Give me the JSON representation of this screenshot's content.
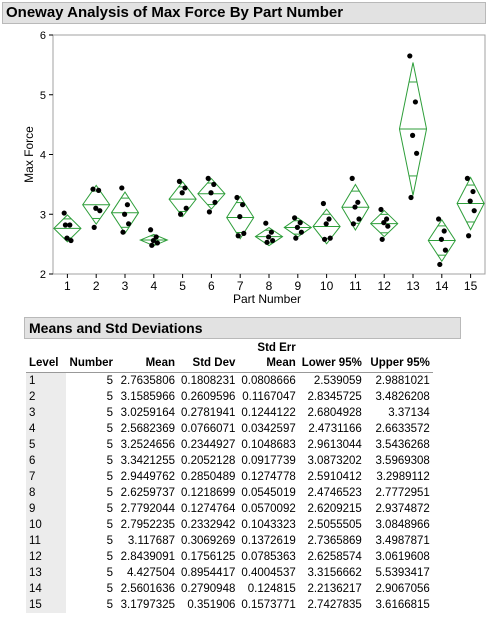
{
  "report": {
    "title": "Oneway Analysis of Max Force By Part Number"
  },
  "chart_data": {
    "type": "scatter",
    "title": "",
    "xlabel": "Part Number",
    "ylabel": "Max Force",
    "ylim": [
      2,
      6
    ],
    "yticks": [
      2,
      3,
      4,
      5,
      6
    ],
    "categories": [
      "1",
      "2",
      "3",
      "4",
      "5",
      "6",
      "7",
      "8",
      "9",
      "10",
      "11",
      "12",
      "13",
      "14",
      "15"
    ],
    "grid": false,
    "point_color": "#000000",
    "diamond_color": "#2e9e3a",
    "points": [
      [
        3.02,
        2.82,
        2.6,
        2.56,
        2.82
      ],
      [
        3.42,
        3.4,
        3.1,
        3.06,
        2.78
      ],
      [
        3.44,
        3.16,
        3.0,
        2.84,
        2.7
      ],
      [
        2.74,
        2.62,
        2.56,
        2.52,
        2.48
      ],
      [
        3.55,
        3.44,
        3.36,
        3.1,
        3.0
      ],
      [
        3.6,
        3.5,
        3.36,
        3.2,
        3.04
      ],
      [
        3.28,
        3.16,
        2.96,
        2.68,
        2.64
      ],
      [
        2.85,
        2.7,
        2.62,
        2.56,
        2.53
      ],
      [
        2.94,
        2.86,
        2.78,
        2.7,
        2.6
      ],
      [
        3.18,
        2.92,
        2.84,
        2.6,
        2.58
      ],
      [
        3.6,
        3.2,
        3.12,
        2.92,
        2.84
      ],
      [
        3.08,
        2.92,
        2.86,
        2.8,
        2.58
      ],
      [
        5.65,
        4.88,
        4.32,
        4.02,
        3.28
      ],
      [
        2.92,
        2.72,
        2.58,
        2.4,
        2.16
      ],
      [
        3.6,
        3.38,
        3.22,
        3.06,
        2.64
      ]
    ],
    "means": [
      2.7635806,
      3.1585966,
      3.0259164,
      2.5682369,
      3.2524656,
      3.3421255,
      2.9449762,
      2.6259737,
      2.7792044,
      2.7952235,
      3.117687,
      2.8439091,
      4.427504,
      2.5601636,
      3.1797325
    ],
    "lower95": [
      2.539059,
      2.8345725,
      2.6804928,
      2.4731166,
      2.9613044,
      3.0873202,
      2.5910412,
      2.4746523,
      2.6209215,
      2.5055505,
      2.7365869,
      2.6258574,
      3.3156662,
      2.2136217,
      2.7427835
    ],
    "upper95": [
      2.9881021,
      3.4826208,
      3.37134,
      2.6633572,
      3.5436268,
      3.5969308,
      3.2989112,
      2.7772951,
      2.9374872,
      3.0848966,
      3.4987871,
      3.0619608,
      5.5393417,
      2.9067056,
      3.6166815
    ]
  },
  "stats_table": {
    "title": "Means and Std Deviations",
    "headers": {
      "level": "Level",
      "number": "Number",
      "mean": "Mean",
      "std_dev": "Std Dev",
      "std_err_line1": "Std Err",
      "std_err_line2": "Mean",
      "lower95": "Lower 95%",
      "upper95": "Upper 95%"
    },
    "rows": [
      [
        "1",
        "5",
        "2.7635806",
        "0.1808231",
        "0.0808666",
        "2.539059",
        "2.9881021"
      ],
      [
        "2",
        "5",
        "3.1585966",
        "0.2609596",
        "0.1167047",
        "2.8345725",
        "3.4826208"
      ],
      [
        "3",
        "5",
        "3.0259164",
        "0.2781941",
        "0.1244122",
        "2.6804928",
        "3.37134"
      ],
      [
        "4",
        "5",
        "2.5682369",
        "0.0766071",
        "0.0342597",
        "2.4731166",
        "2.6633572"
      ],
      [
        "5",
        "5",
        "3.2524656",
        "0.2344927",
        "0.1048683",
        "2.9613044",
        "3.5436268"
      ],
      [
        "6",
        "5",
        "3.3421255",
        "0.2052128",
        "0.0917739",
        "3.0873202",
        "3.5969308"
      ],
      [
        "7",
        "5",
        "2.9449762",
        "0.2850489",
        "0.1274778",
        "2.5910412",
        "3.2989112"
      ],
      [
        "8",
        "5",
        "2.6259737",
        "0.1218699",
        "0.0545019",
        "2.4746523",
        "2.7772951"
      ],
      [
        "9",
        "5",
        "2.7792044",
        "0.1274764",
        "0.0570092",
        "2.6209215",
        "2.9374872"
      ],
      [
        "10",
        "5",
        "2.7952235",
        "0.2332942",
        "0.1043323",
        "2.5055505",
        "3.0848966"
      ],
      [
        "11",
        "5",
        "3.117687",
        "0.3069269",
        "0.1372619",
        "2.7365869",
        "3.4987871"
      ],
      [
        "12",
        "5",
        "2.8439091",
        "0.1756125",
        "0.0785363",
        "2.6258574",
        "3.0619608"
      ],
      [
        "13",
        "5",
        "4.427504",
        "0.8954417",
        "0.4004537",
        "3.3156662",
        "5.5393417"
      ],
      [
        "14",
        "5",
        "2.5601636",
        "0.2790948",
        "0.124815",
        "2.2136217",
        "2.9067056"
      ],
      [
        "15",
        "5",
        "3.1797325",
        "0.351906",
        "0.1573771",
        "2.7427835",
        "3.6166815"
      ]
    ]
  }
}
